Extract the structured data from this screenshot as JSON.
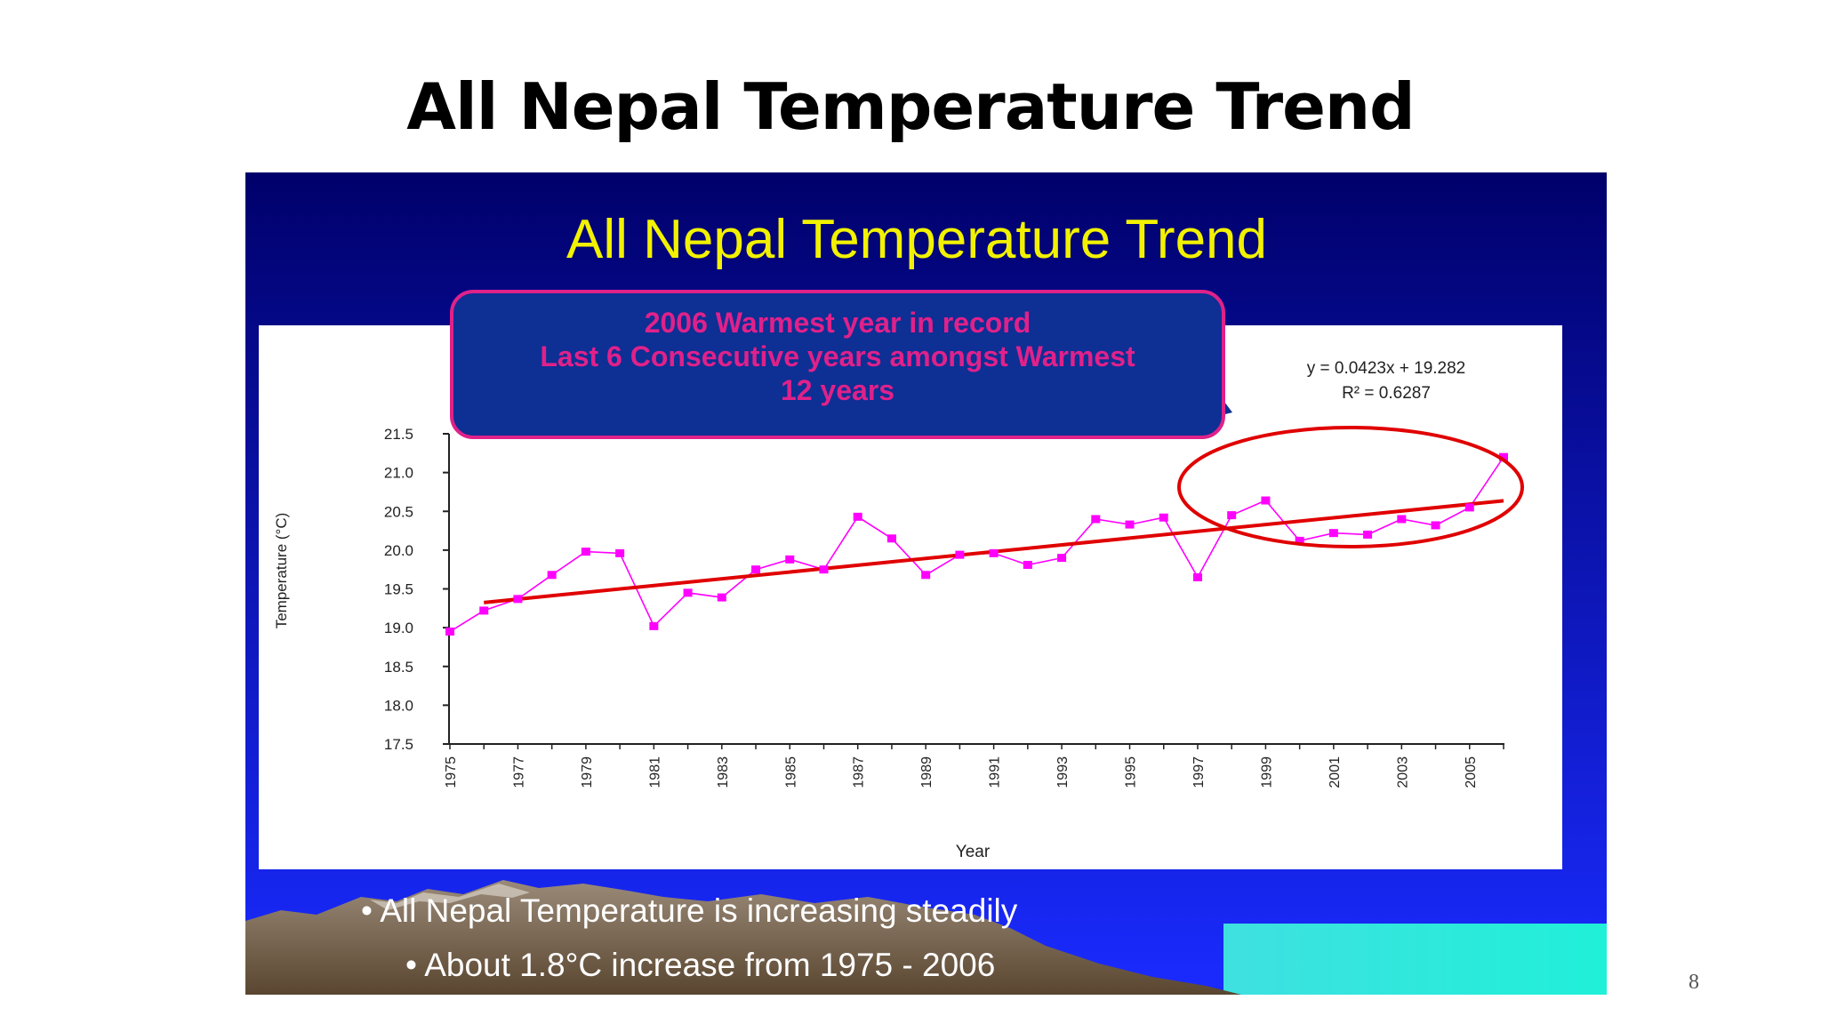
{
  "slide": {
    "title": "All Nepal Temperature Trend",
    "page_number": "8"
  },
  "colors": {
    "background_top": "#00006b",
    "background_bottom": "#1a2bff",
    "heading_yellow": "#f2f200",
    "callout_fill": "#0e2f94",
    "callout_text": "#e0218a",
    "series_color": "#ff00ff",
    "trend_color": "#e00000",
    "bullet_text": "#ffffff"
  },
  "inner_heading": "All Nepal Temperature Trend",
  "callout": {
    "lines": [
      "2006 Warmest year in record",
      "Last 6 Consecutive years amongst Warmest",
      "12 years"
    ]
  },
  "bullets": [
    "All Nepal Temperature is increasing steadily",
    "About 1.8°C increase from 1975 - 2006"
  ],
  "chart_data": {
    "type": "line",
    "xlabel": "Year",
    "ylabel": "Temperature (°C)",
    "ylim": [
      17.5,
      21.5
    ],
    "yticks": [
      "17.5",
      "18.0",
      "18.5",
      "19.0",
      "19.5",
      "20.0",
      "20.5",
      "21.0",
      "21.5"
    ],
    "xticks": [
      "1975",
      "1977",
      "1979",
      "1981",
      "1983",
      "1985",
      "1987",
      "1989",
      "1991",
      "1993",
      "1995",
      "1997",
      "1999",
      "2001",
      "2003",
      "2005"
    ],
    "x": [
      1975,
      1976,
      1977,
      1978,
      1979,
      1980,
      1981,
      1982,
      1983,
      1984,
      1985,
      1986,
      1987,
      1988,
      1989,
      1990,
      1991,
      1992,
      1993,
      1994,
      1995,
      1996,
      1997,
      1998,
      1999,
      2000,
      2001,
      2002,
      2003,
      2004,
      2005,
      2006
    ],
    "series": [
      {
        "values": [
          18.95,
          19.22,
          19.37,
          19.68,
          19.98,
          19.96,
          19.02,
          19.45,
          19.39,
          19.75,
          19.88,
          19.75,
          20.43,
          20.15,
          19.68,
          19.94,
          19.96,
          19.81,
          19.9,
          20.4,
          20.33,
          20.42,
          19.65,
          20.45,
          20.64,
          20.12,
          20.22,
          20.2,
          20.4,
          20.32,
          20.55,
          21.2
        ]
      }
    ],
    "trendline": {
      "equation": "y = 0.0423x + 19.282",
      "r_squared": "R² = 0.6287",
      "slope": 0.0423,
      "intercept": 19.282
    },
    "highlight": "circle around 1998-2006"
  }
}
